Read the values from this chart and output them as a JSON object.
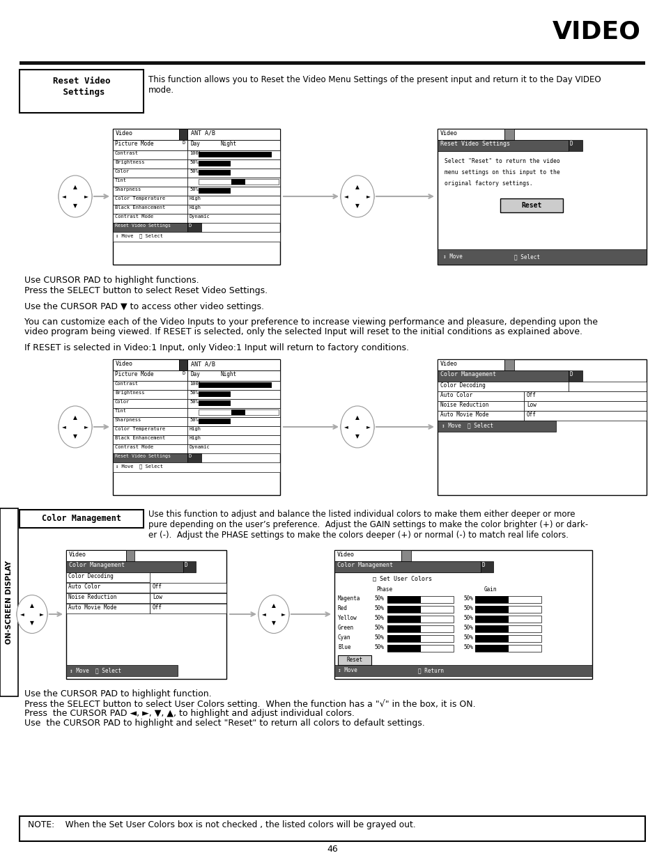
{
  "title": "VIDEO",
  "page_number": "46",
  "bg": "#ffffff",
  "section1_label_line1": "Reset Video",
  "section1_label_line2": " Settings",
  "section1_desc_line1": "This function allows you to Reset the Video Menu Settings of the present input and return it to the Day VIDEO",
  "section1_desc_line2": "mode.",
  "text1a": "Use CURSOR PAD to highlight functions.",
  "text1b": "Press the SELECT button to select Reset Video Settings.",
  "text1c": "Use the CURSOR PAD ▼ to access other video settings.",
  "text1d": "You can customize each of the Video Inputs to your preference to increase viewing performance and pleasure, depending upon the",
  "text1e": "video program being viewed. If RESET is selected, only the selected Input will reset to the initial conditions as explained above.",
  "text1f": "If RESET is selected in Video:1 Input, only Video:1 Input will return to factory conditions.",
  "section2_label": "Color Management",
  "section2_desc1": "Use this function to adjust and balance the listed individual colors to make them either deeper or more",
  "section2_desc2": "pure depending on the user’s preference.  Adjust the GAIN settings to make the color brighter (+) or dark-",
  "section2_desc3": "er (-).  Adjust the PHASE settings to make the colors deeper (+) or normal (-) to match real life colors.",
  "text2a": "Use the CURSOR PAD to highlight function.",
  "text2b": "Press the SELECT button to select User Colors setting.  When the function has a \"√\" in the box, it is ON.",
  "text2c": "Press  the CURSOR PAD ◄, ►, ▼, ▲, to highlight and adjust individual colors.",
  "text2d": "Use  the CURSOR PAD to highlight and select \"Reset\" to return all colors to default settings.",
  "note": "NOTE:    When the Set User Colors box is not checked , the listed colors will be grayed out.",
  "sidebar": "ON-SCREEN DISPLAY"
}
